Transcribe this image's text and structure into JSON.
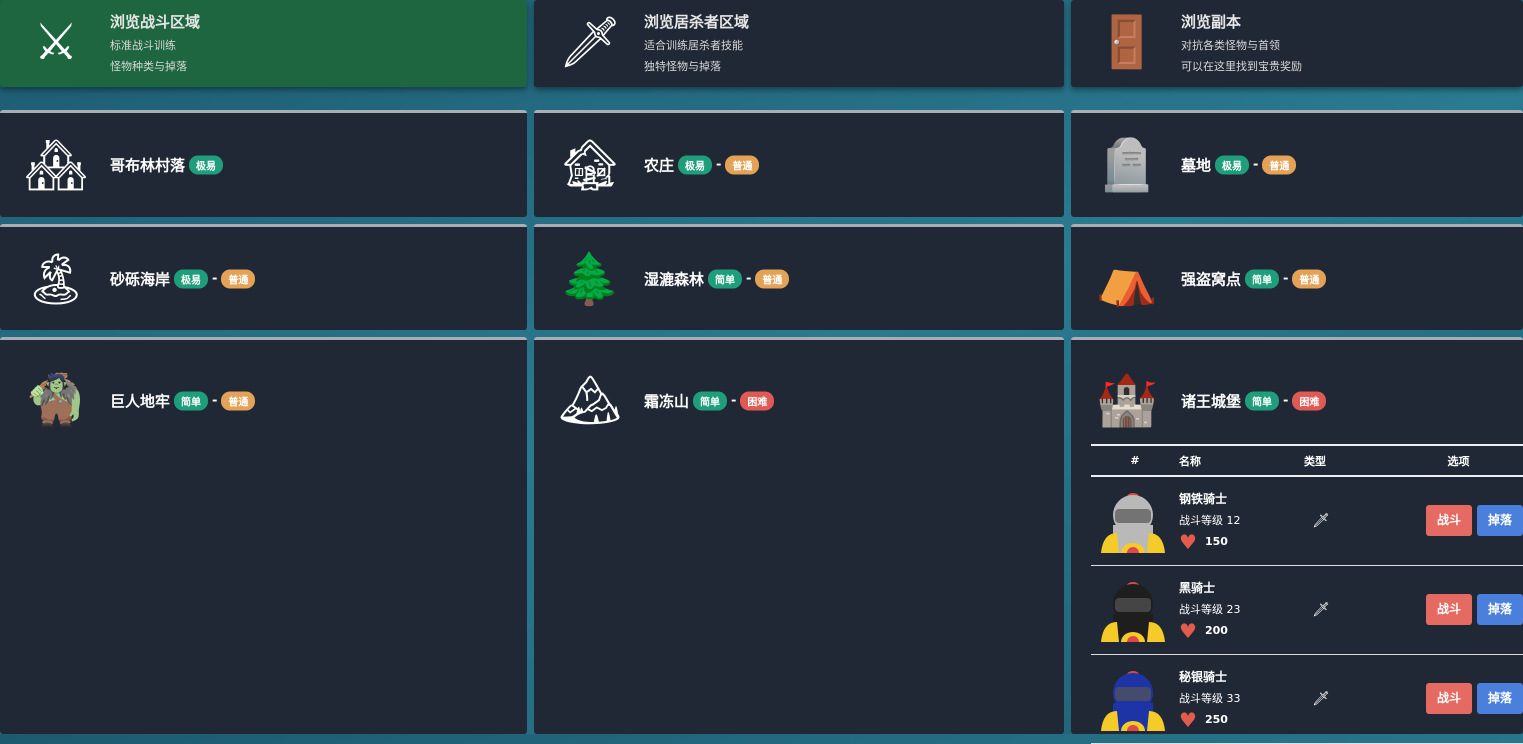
{
  "top_cards": [
    {
      "title": "浏览战斗区域",
      "lines": [
        "标准战斗训练",
        "怪物种类与掉落"
      ],
      "icon": "crossed-swords-icon",
      "active": true
    },
    {
      "title": "浏览居杀者区域",
      "lines": [
        "适合训练居杀者技能",
        "独特怪物与掉落"
      ],
      "icon": "sword-in-stone-icon"
    },
    {
      "title": "浏览副本",
      "lines": [
        "对抗各类怪物与首领",
        "可以在这里找到宝贵奖励"
      ],
      "icon": "dungeon-door-icon"
    }
  ],
  "zones": [
    {
      "name": "哥布林村落",
      "badges": [
        {
          "t": "极易",
          "c": "g"
        }
      ],
      "icon": "village-icon"
    },
    {
      "name": "农庄",
      "badges": [
        {
          "t": "极易",
          "c": "g"
        },
        {
          "t": "普通",
          "c": "o"
        }
      ],
      "icon": "barn-icon"
    },
    {
      "name": "墓地",
      "badges": [
        {
          "t": "极易",
          "c": "g"
        },
        {
          "t": "普通",
          "c": "o"
        }
      ],
      "icon": "tombstone-icon"
    },
    {
      "name": "砂砾海岸",
      "badges": [
        {
          "t": "极易",
          "c": "g"
        },
        {
          "t": "普通",
          "c": "o"
        }
      ],
      "icon": "palm-beach-icon"
    },
    {
      "name": "湿漉森林",
      "badges": [
        {
          "t": "简单",
          "c": "g"
        },
        {
          "t": "普通",
          "c": "o"
        }
      ],
      "icon": "forest-icon"
    },
    {
      "name": "强盗窝点",
      "badges": [
        {
          "t": "简单",
          "c": "g"
        },
        {
          "t": "普通",
          "c": "o"
        }
      ],
      "icon": "tent-icon"
    },
    {
      "name": "巨人地牢",
      "badges": [
        {
          "t": "简单",
          "c": "g"
        },
        {
          "t": "普通",
          "c": "o"
        }
      ],
      "icon": "giant-icon"
    },
    {
      "name": "霜冻山",
      "badges": [
        {
          "t": "简单",
          "c": "g"
        },
        {
          "t": "困难",
          "c": "r"
        }
      ],
      "icon": "snow-mountain-icon"
    },
    {
      "name": "诸王城堡",
      "badges": [
        {
          "t": "简单",
          "c": "g"
        },
        {
          "t": "困难",
          "c": "r"
        }
      ],
      "icon": "castle-icon"
    }
  ],
  "dash": "-",
  "table": {
    "headers": [
      "#",
      "名称",
      "类型",
      "选项"
    ],
    "rows": [
      {
        "name": "钢铁骑士",
        "level": "战斗等级 12",
        "hp": "150",
        "color": "#b9b9b9"
      },
      {
        "name": "黑骑士",
        "level": "战斗等级 23",
        "hp": "200",
        "color": "#1e1e1e"
      },
      {
        "name": "秘银骑士",
        "level": "战斗等级 33",
        "hp": "250",
        "color": "#1c34a6"
      }
    ],
    "fight_label": "战斗",
    "drop_label": "掉落",
    "type_icon": "sword-icon"
  }
}
